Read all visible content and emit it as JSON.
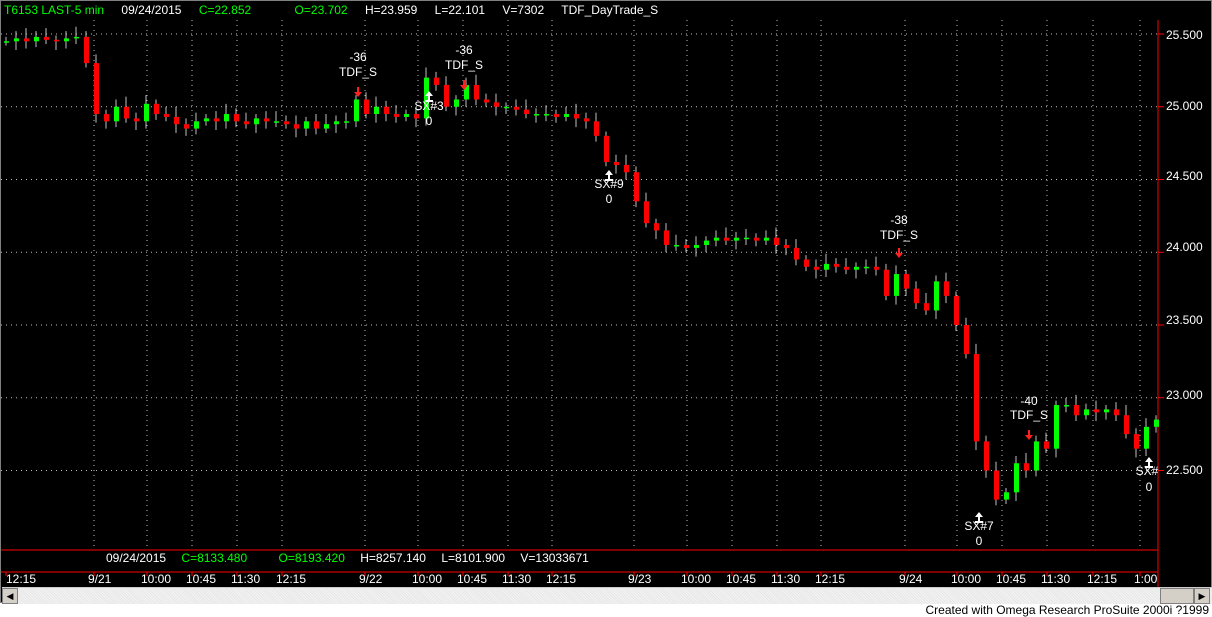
{
  "header": {
    "symbol": "T6153 LAST-5 min",
    "date": "09/24/2015",
    "close": "C=22.852",
    "open": "O=23.702",
    "high": "H=23.959",
    "low": "L=22.101",
    "volume": "V=7302",
    "strategy": "TDF_DayTrade_S"
  },
  "index_info": {
    "date": "09/24/2015",
    "close": "C=8133.480",
    "open": "O=8193.420",
    "high": "H=8257.140",
    "low": "L=8101.900",
    "volume": "V=13033671"
  },
  "colors": {
    "up": "#00ff00",
    "down": "#ff0000",
    "background": "#000000",
    "grid": "#c0c0c0",
    "axis": "#ff0000"
  },
  "price_axis": [
    "25.500",
    "25.000",
    "24.500",
    "24.000",
    "23.500",
    "23.000",
    "22.500"
  ],
  "time_axis": [
    "12:15",
    "9/21",
    "10:00",
    "10:45",
    "11:30",
    "12:15",
    "9/22",
    "10:00",
    "10:45",
    "11:30",
    "12:15",
    "9/23",
    "10:00",
    "10:45",
    "11:30",
    "12:15",
    "9/24",
    "10:00",
    "10:45",
    "11:30",
    "12:15",
    "1:00"
  ],
  "annotations": [
    {
      "value": "-36",
      "label": "TDF_S",
      "type": "entry"
    },
    {
      "value": "-36",
      "label": "TDF_S",
      "type": "entry"
    },
    {
      "value": "-38",
      "label": "TDF_S",
      "type": "entry"
    },
    {
      "value": "-40",
      "label": "TDF_S",
      "type": "entry"
    },
    {
      "value": "0",
      "label": "SX#3",
      "type": "exit"
    },
    {
      "value": "0",
      "label": "SX#9",
      "type": "exit"
    },
    {
      "value": "0",
      "label": "SX#7",
      "type": "exit"
    },
    {
      "value": "0",
      "label": "SX#",
      "type": "exit"
    }
  ],
  "chart_data": {
    "type": "candlestick",
    "ylim": [
      22.1,
      25.6
    ],
    "grid": true,
    "closes": [
      25.45,
      25.47,
      25.45,
      25.48,
      25.46,
      25.45,
      25.47,
      25.48,
      25.3,
      24.95,
      24.9,
      25.0,
      24.92,
      24.9,
      25.02,
      24.95,
      24.93,
      24.88,
      24.85,
      24.9,
      24.92,
      24.9,
      24.95,
      24.9,
      24.88,
      24.92,
      24.9,
      24.9,
      24.88,
      24.85,
      24.9,
      24.85,
      24.88,
      24.9,
      24.9,
      25.05,
      24.95,
      25.0,
      24.95,
      24.93,
      24.95,
      24.92,
      25.2,
      25.15,
      25.0,
      25.05,
      25.15,
      25.05,
      25.03,
      25.0,
      25.0,
      24.98,
      24.95,
      24.95,
      24.95,
      24.93,
      24.95,
      24.92,
      24.9,
      24.8,
      24.62,
      24.6,
      24.55,
      24.35,
      24.2,
      24.15,
      24.05,
      24.05,
      24.03,
      24.05,
      24.08,
      24.1,
      24.08,
      24.1,
      24.1,
      24.08,
      24.1,
      24.05,
      24.03,
      23.95,
      23.9,
      23.88,
      23.92,
      23.9,
      23.88,
      23.9,
      23.9,
      23.88,
      23.7,
      23.85,
      23.75,
      23.65,
      23.6,
      23.8,
      23.7,
      23.5,
      23.3,
      22.7,
      22.5,
      22.3,
      22.35,
      22.55,
      22.5,
      22.7,
      22.65,
      22.95,
      22.95,
      22.88,
      22.92,
      22.9,
      22.92,
      22.88,
      22.75,
      22.65,
      22.8,
      22.85
    ]
  },
  "footer": "Created with Omega Research ProSuite 2000i ?1999"
}
